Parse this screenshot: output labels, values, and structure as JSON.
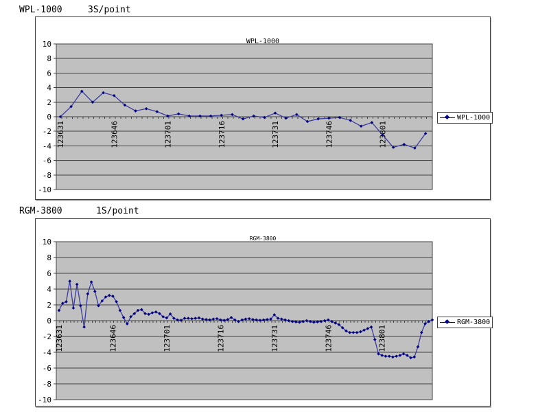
{
  "page_background": "#ffffff",
  "chart_data": [
    {
      "type": "line",
      "title": "WPL-1000",
      "header_label": "WPL-1000",
      "rate_label": "3S/point",
      "legend": "WPL-1000",
      "legend_position": "right",
      "grid": true,
      "plot_bg": "#c0c0c0",
      "line_color": "#3a3aa0",
      "marker_color": "#000080",
      "ylim": [
        -10,
        10
      ],
      "ytick_step": 2,
      "seconds_per_point": 3,
      "points_per_label": 5,
      "x_tick_labels": [
        "123631",
        "123646",
        "123701",
        "123716",
        "123731",
        "123746",
        "123801"
      ],
      "values": [
        0.0,
        1.4,
        3.5,
        2.0,
        3.3,
        2.9,
        1.6,
        0.8,
        1.1,
        0.7,
        0.1,
        0.4,
        0.1,
        0.1,
        0.1,
        0.2,
        0.3,
        -0.3,
        0.1,
        -0.1,
        0.5,
        -0.2,
        0.3,
        -0.65,
        -0.3,
        -0.2,
        -0.1,
        -0.5,
        -1.3,
        -0.8,
        -2.5,
        -4.2,
        -3.8,
        -4.3,
        -2.3
      ]
    },
    {
      "type": "line",
      "title": "RGM-3800",
      "header_label": "RGM-3800",
      "rate_label": "1S/point",
      "legend": "RGM-3800",
      "legend_position": "right",
      "grid": true,
      "plot_bg": "#c0c0c0",
      "line_color": "#3a3aa0",
      "marker_color": "#000080",
      "ylim": [
        -10,
        10
      ],
      "ytick_step": 2,
      "seconds_per_point": 1,
      "points_per_label": 15,
      "x_tick_labels": [
        "123631",
        "123646",
        "123701",
        "123716",
        "123731",
        "123746",
        "123801"
      ],
      "values": [
        1.3,
        2.2,
        2.4,
        5.0,
        1.6,
        4.6,
        1.9,
        -0.8,
        3.4,
        4.9,
        3.7,
        1.9,
        2.5,
        3.0,
        3.2,
        3.1,
        2.4,
        1.3,
        0.4,
        -0.4,
        0.5,
        0.9,
        1.3,
        1.4,
        0.9,
        0.8,
        1.0,
        1.1,
        0.9,
        0.5,
        0.35,
        0.85,
        0.3,
        0.1,
        0.05,
        0.3,
        0.3,
        0.25,
        0.3,
        0.35,
        0.2,
        0.15,
        0.1,
        0.2,
        0.25,
        0.1,
        0.05,
        0.15,
        0.4,
        0.1,
        -0.1,
        0.1,
        0.2,
        0.25,
        0.15,
        0.1,
        0.05,
        0.1,
        0.15,
        0.2,
        0.75,
        0.3,
        0.2,
        0.1,
        0.0,
        -0.1,
        -0.15,
        -0.2,
        -0.1,
        0.0,
        -0.1,
        -0.2,
        -0.15,
        -0.1,
        0.0,
        0.1,
        -0.1,
        -0.3,
        -0.5,
        -0.9,
        -1.3,
        -1.5,
        -1.5,
        -1.5,
        -1.4,
        -1.2,
        -1.0,
        -0.8,
        -2.4,
        -4.2,
        -4.4,
        -4.5,
        -4.5,
        -4.6,
        -4.5,
        -4.4,
        -4.2,
        -4.4,
        -4.7,
        -4.6,
        -3.3,
        -1.5,
        -0.4,
        -0.1,
        0.1
      ]
    }
  ]
}
